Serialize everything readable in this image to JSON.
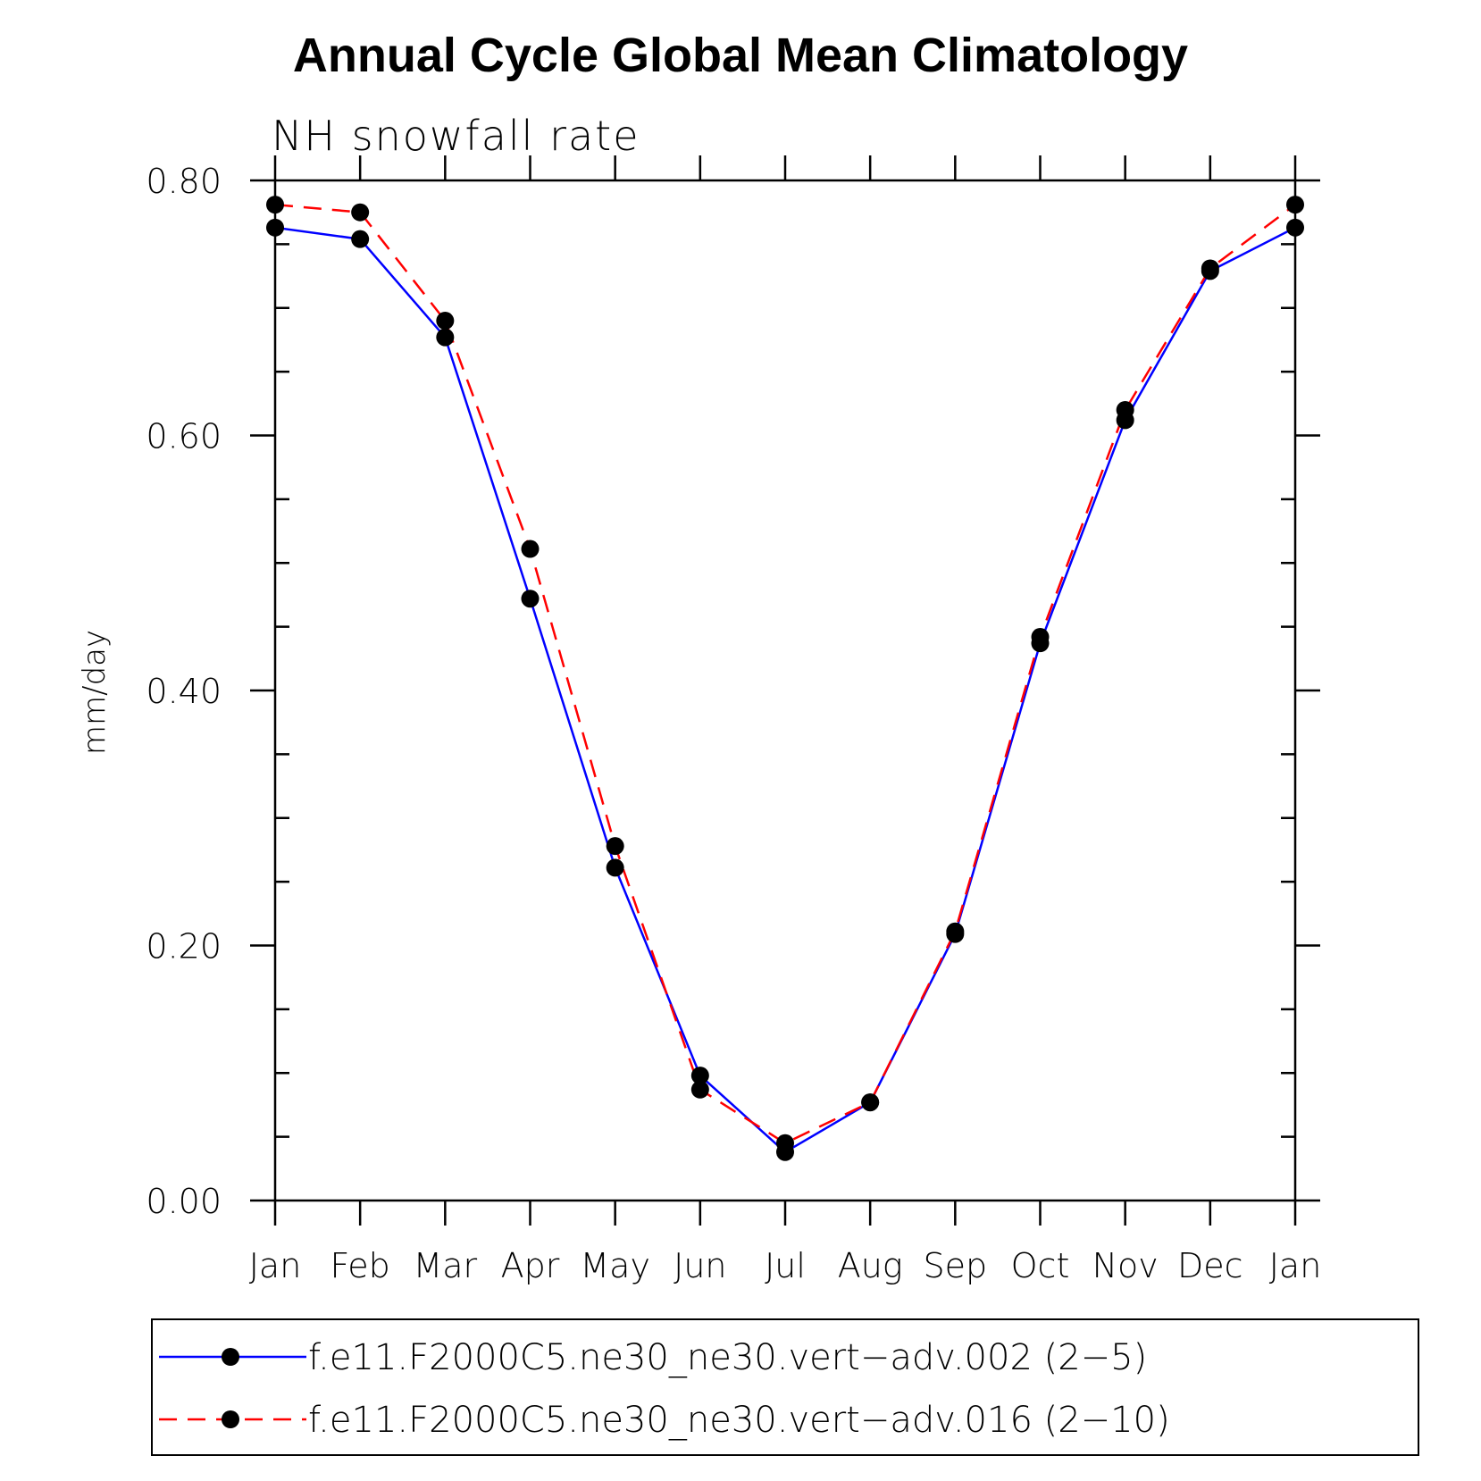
{
  "chart_data": {
    "type": "line",
    "title": "Annual Cycle Global Mean Climatology",
    "subtitle": "NH snowfall rate",
    "xlabel": "",
    "ylabel": "mm/day",
    "categories": [
      "Jan",
      "Feb",
      "Mar",
      "Apr",
      "May",
      "Jun",
      "Jul",
      "Aug",
      "Sep",
      "Oct",
      "Nov",
      "Dec",
      "Jan"
    ],
    "yticks": [
      "0.00",
      "0.20",
      "0.40",
      "0.60",
      "0.80"
    ],
    "ylim": [
      0,
      0.8
    ],
    "grid": false,
    "legend_position": "bottom",
    "series": [
      {
        "name": "f.e11.F2000C5.ne30_ne30.vert−adv.002 (2−5)",
        "color": "#0000ff",
        "line_style": "solid",
        "values": [
          0.763,
          0.754,
          0.677,
          0.472,
          0.261,
          0.098,
          0.038,
          0.077,
          0.209,
          0.437,
          0.612,
          0.729,
          0.763
        ]
      },
      {
        "name": "f.e11.F2000C5.ne30_ne30.vert−adv.016 (2−10)",
        "color": "#ff0000",
        "line_style": "dashed",
        "values": [
          0.781,
          0.775,
          0.69,
          0.511,
          0.278,
          0.087,
          0.045,
          0.077,
          0.211,
          0.442,
          0.62,
          0.731,
          0.781
        ]
      }
    ]
  }
}
